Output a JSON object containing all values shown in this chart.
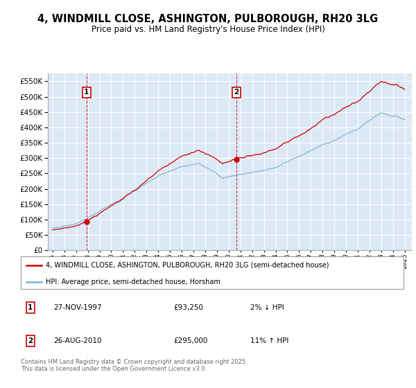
{
  "title1": "4, WINDMILL CLOSE, ASHINGTON, PULBOROUGH, RH20 3LG",
  "title2": "Price paid vs. HM Land Registry's House Price Index (HPI)",
  "legend_line1": "4, WINDMILL CLOSE, ASHINGTON, PULBOROUGH, RH20 3LG (semi-detached house)",
  "legend_line2": "HPI: Average price, semi-detached house, Horsham",
  "sale1_date": "27-NOV-1997",
  "sale1_price": "£93,250",
  "sale1_note": "2% ↓ HPI",
  "sale1_year": 1997.9,
  "sale1_value": 93250,
  "sale2_date": "26-AUG-2010",
  "sale2_price": "£295,000",
  "sale2_note": "11% ↑ HPI",
  "sale2_year": 2010.65,
  "sale2_value": 295000,
  "price_color": "#cc0000",
  "hpi_color": "#7aafd4",
  "background_color": "#dce9f5",
  "ylim": [
    0,
    575000
  ],
  "yticks": [
    0,
    50000,
    100000,
    150000,
    200000,
    250000,
    300000,
    350000,
    400000,
    450000,
    500000,
    550000
  ],
  "xstart": 1995,
  "xend": 2025,
  "footer": "Contains HM Land Registry data © Crown copyright and database right 2025.\nThis data is licensed under the Open Government Licence v3.0."
}
